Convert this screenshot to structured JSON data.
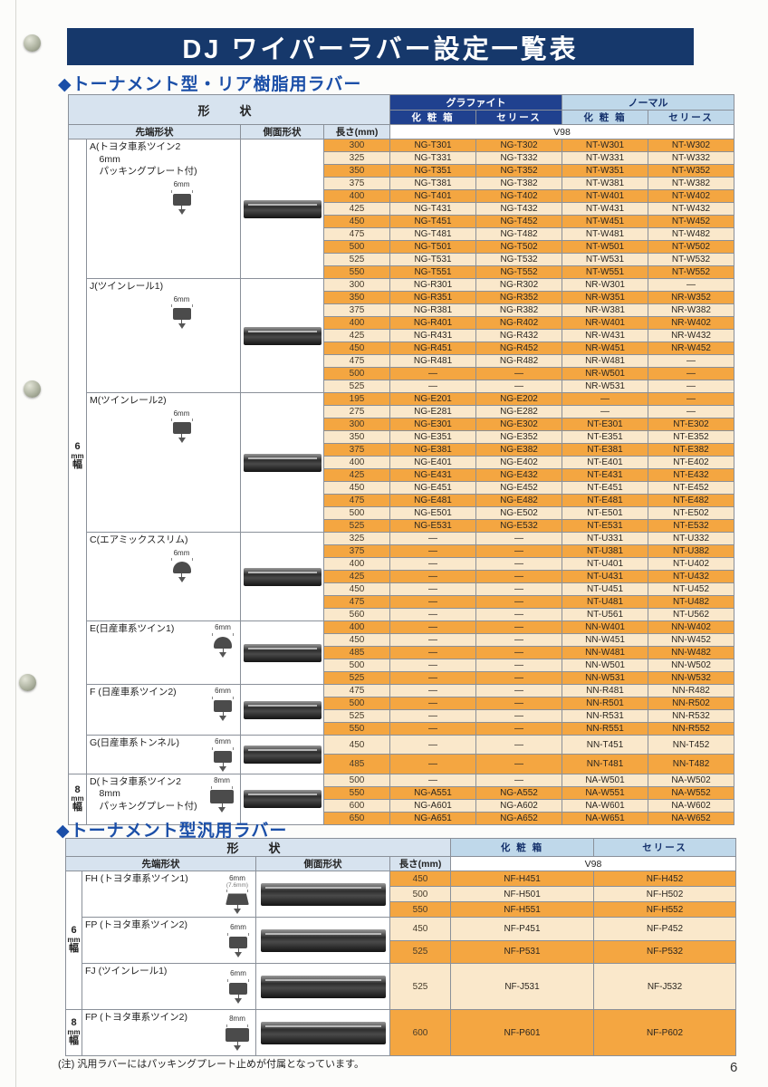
{
  "page": {
    "title": "DJ ワイパーラバー設定一覧表",
    "page_number": "6",
    "note": "(注) 汎用ラバーにはパッキングプレート止めが付属となっています。"
  },
  "colors": {
    "banner_bg": "#16386B",
    "section_title_blue": "#1B4FA8",
    "graphite_header_bg": "#20418F",
    "normal_header_bg": "#BFD8EA",
    "shape_header_bg": "#D7E3EF",
    "row_orange": "#F4A641",
    "row_cream": "#FAE8CB"
  },
  "table1": {
    "section_title": "◆トーナメント型・リア樹脂用ラバー",
    "headers": {
      "shape": "形　状",
      "graphite": "グラファイト",
      "normal": "ノーマル",
      "g_box": "化 粧 箱",
      "g_cello": "セリース",
      "n_box": "化 粧 箱",
      "n_cello": "セリース",
      "tip": "先端形状",
      "side": "側面形状",
      "len": "長さ(mm)",
      "v98": "V98"
    },
    "bands": [
      {
        "label_lines": [
          "6",
          "mm",
          "幅"
        ],
        "groups": [
          0,
          1,
          2,
          3,
          4,
          5,
          6
        ]
      },
      {
        "label_lines": [
          "8",
          "mm",
          "幅"
        ],
        "groups": [
          7
        ]
      }
    ],
    "groups": [
      {
        "label_lines": [
          "A(トヨタ車系ツイン2",
          "　6mm",
          "　パッキングプレート付)"
        ],
        "tip_mm": "6mm",
        "tip_style": "block",
        "icon_inline": false,
        "rows": [
          [
            "300",
            "NG-T301",
            "NG-T302",
            "NT-W301",
            "NT-W302"
          ],
          [
            "325",
            "NG-T331",
            "NG-T332",
            "NT-W331",
            "NT-W332"
          ],
          [
            "350",
            "NG-T351",
            "NG-T352",
            "NT-W351",
            "NT-W352"
          ],
          [
            "375",
            "NG-T381",
            "NG-T382",
            "NT-W381",
            "NT-W382"
          ],
          [
            "400",
            "NG-T401",
            "NG-T402",
            "NT-W401",
            "NT-W402"
          ],
          [
            "425",
            "NG-T431",
            "NG-T432",
            "NT-W431",
            "NT-W432"
          ],
          [
            "450",
            "NG-T451",
            "NG-T452",
            "NT-W451",
            "NT-W452"
          ],
          [
            "475",
            "NG-T481",
            "NG-T482",
            "NT-W481",
            "NT-W482"
          ],
          [
            "500",
            "NG-T501",
            "NG-T502",
            "NT-W501",
            "NT-W502"
          ],
          [
            "525",
            "NG-T531",
            "NG-T532",
            "NT-W531",
            "NT-W532"
          ],
          [
            "550",
            "NG-T551",
            "NG-T552",
            "NT-W551",
            "NT-W552"
          ]
        ]
      },
      {
        "label_lines": [
          "J(ツインレール1)"
        ],
        "tip_mm": "6mm",
        "tip_style": "block",
        "icon_inline": false,
        "rows": [
          [
            "300",
            "NG-R301",
            "NG-R302",
            "NR-W301",
            "—"
          ],
          [
            "350",
            "NG-R351",
            "NG-R352",
            "NR-W351",
            "NR-W352"
          ],
          [
            "375",
            "NG-R381",
            "NG-R382",
            "NR-W381",
            "NR-W382"
          ],
          [
            "400",
            "NG-R401",
            "NG-R402",
            "NR-W401",
            "NR-W402"
          ],
          [
            "425",
            "NG-R431",
            "NG-R432",
            "NR-W431",
            "NR-W432"
          ],
          [
            "450",
            "NG-R451",
            "NG-R452",
            "NR-W451",
            "NR-W452"
          ],
          [
            "475",
            "NG-R481",
            "NG-R482",
            "NR-W481",
            "—"
          ],
          [
            "500",
            "—",
            "—",
            "NR-W501",
            "—"
          ],
          [
            "525",
            "—",
            "—",
            "NR-W531",
            "—"
          ]
        ]
      },
      {
        "label_lines": [
          "M(ツインレール2)"
        ],
        "tip_mm": "6mm",
        "tip_style": "block",
        "icon_inline": false,
        "rows": [
          [
            "195",
            "NG-E201",
            "NG-E202",
            "—",
            "—"
          ],
          [
            "275",
            "NG-E281",
            "NG-E282",
            "—",
            "—"
          ],
          [
            "300",
            "NG-E301",
            "NG-E302",
            "NT-E301",
            "NT-E302"
          ],
          [
            "350",
            "NG-E351",
            "NG-E352",
            "NT-E351",
            "NT-E352"
          ],
          [
            "375",
            "NG-E381",
            "NG-E382",
            "NT-E381",
            "NT-E382"
          ],
          [
            "400",
            "NG-E401",
            "NG-E402",
            "NT-E401",
            "NT-E402"
          ],
          [
            "425",
            "NG-E431",
            "NG-E432",
            "NT-E431",
            "NT-E432"
          ],
          [
            "450",
            "NG-E451",
            "NG-E452",
            "NT-E451",
            "NT-E452"
          ],
          [
            "475",
            "NG-E481",
            "NG-E482",
            "NT-E481",
            "NT-E482"
          ],
          [
            "500",
            "NG-E501",
            "NG-E502",
            "NT-E501",
            "NT-E502"
          ],
          [
            "525",
            "NG-E531",
            "NG-E532",
            "NT-E531",
            "NT-E532"
          ]
        ]
      },
      {
        "label_lines": [
          "C(エアミックススリム)"
        ],
        "tip_mm": "6mm",
        "tip_style": "dome",
        "icon_inline": false,
        "rows": [
          [
            "325",
            "—",
            "—",
            "NT-U331",
            "NT-U332"
          ],
          [
            "375",
            "—",
            "—",
            "NT-U381",
            "NT-U382"
          ],
          [
            "400",
            "—",
            "—",
            "NT-U401",
            "NT-U402"
          ],
          [
            "425",
            "—",
            "—",
            "NT-U431",
            "NT-U432"
          ],
          [
            "450",
            "—",
            "—",
            "NT-U451",
            "NT-U452"
          ],
          [
            "475",
            "—",
            "—",
            "NT-U481",
            "NT-U482"
          ],
          [
            "560",
            "—",
            "—",
            "NT-U561",
            "NT-U562"
          ]
        ]
      },
      {
        "label_lines": [
          "E(日産車系ツイン1)"
        ],
        "tip_mm": "6mm",
        "tip_style": "dome",
        "icon_inline": true,
        "rows": [
          [
            "400",
            "—",
            "—",
            "NN-W401",
            "NN-W402"
          ],
          [
            "450",
            "—",
            "—",
            "NN-W451",
            "NN-W452"
          ],
          [
            "485",
            "—",
            "—",
            "NN-W481",
            "NN-W482"
          ],
          [
            "500",
            "—",
            "—",
            "NN-W501",
            "NN-W502"
          ],
          [
            "525",
            "—",
            "—",
            "NN-W531",
            "NN-W532"
          ]
        ]
      },
      {
        "label_lines": [
          "F (日産車系ツイン2)"
        ],
        "tip_mm": "6mm",
        "tip_style": "block",
        "icon_inline": true,
        "rows": [
          [
            "475",
            "—",
            "—",
            "NN-R481",
            "NN-R482"
          ],
          [
            "500",
            "—",
            "—",
            "NN-R501",
            "NN-R502"
          ],
          [
            "525",
            "—",
            "—",
            "NN-R531",
            "NN-R532"
          ],
          [
            "550",
            "—",
            "—",
            "NN-R551",
            "NN-R552"
          ]
        ]
      },
      {
        "label_lines": [
          "G(日産車系トンネル)"
        ],
        "tip_mm": "6mm",
        "tip_style": "block",
        "icon_inline": true,
        "rows": [
          [
            "450",
            "—",
            "—",
            "NN-T451",
            "NN-T452"
          ],
          [
            "485",
            "—",
            "—",
            "NN-T481",
            "NN-T482"
          ]
        ]
      },
      {
        "label_lines": [
          "D(トヨタ車系ツイン2",
          "　8mm",
          "　パッキングプレート付)"
        ],
        "tip_mm": "8mm",
        "tip_style": "block",
        "icon_inline": true,
        "rows": [
          [
            "500",
            "—",
            "—",
            "NA-W501",
            "NA-W502"
          ],
          [
            "550",
            "NG-A551",
            "NG-A552",
            "NA-W551",
            "NA-W552"
          ],
          [
            "600",
            "NG-A601",
            "NG-A602",
            "NA-W601",
            "NA-W602"
          ],
          [
            "650",
            "NG-A651",
            "NG-A652",
            "NA-W651",
            "NA-W652"
          ]
        ]
      }
    ]
  },
  "table2": {
    "section_title": "◆トーナメント型汎用ラバー",
    "headers": {
      "shape": "形　状",
      "box": "化 粧 箱",
      "cello": "セリース",
      "tip": "先端形状",
      "side": "側面形状",
      "len": "長さ(mm)",
      "v98": "V98"
    },
    "bands": [
      {
        "label_lines": [
          "6",
          "mm",
          "幅"
        ],
        "groups": [
          0,
          1,
          2
        ]
      },
      {
        "label_lines": [
          "8",
          "mm",
          "幅"
        ],
        "groups": [
          3
        ]
      }
    ],
    "groups": [
      {
        "label_lines": [
          "FH (トヨタ車系ツイン1)"
        ],
        "tip_mm": "6mm",
        "tip_sub": "(7.6mm)",
        "tip_style": "trap",
        "icon_inline": true,
        "rows": [
          [
            "450",
            "NF-H451",
            "NF-H452"
          ],
          [
            "500",
            "NF-H501",
            "NF-H502"
          ],
          [
            "550",
            "NF-H551",
            "NF-H552"
          ]
        ]
      },
      {
        "label_lines": [
          "FP (トヨタ車系ツイン2)"
        ],
        "tip_mm": "6mm",
        "tip_style": "block",
        "icon_inline": true,
        "rows": [
          [
            "450",
            "NF-P451",
            "NF-P452"
          ],
          [
            "525",
            "NF-P531",
            "NF-P532"
          ]
        ]
      },
      {
        "label_lines": [
          "FJ (ツインレール1)"
        ],
        "tip_mm": "6mm",
        "tip_style": "block",
        "icon_inline": true,
        "rows": [
          [
            "525",
            "NF-J531",
            "NF-J532"
          ]
        ]
      },
      {
        "label_lines": [
          "FP (トヨタ車系ツイン2)"
        ],
        "tip_mm": "8mm",
        "tip_style": "block",
        "icon_inline": true,
        "rows": [
          [
            "600",
            "NF-P601",
            "NF-P602"
          ]
        ]
      }
    ]
  }
}
